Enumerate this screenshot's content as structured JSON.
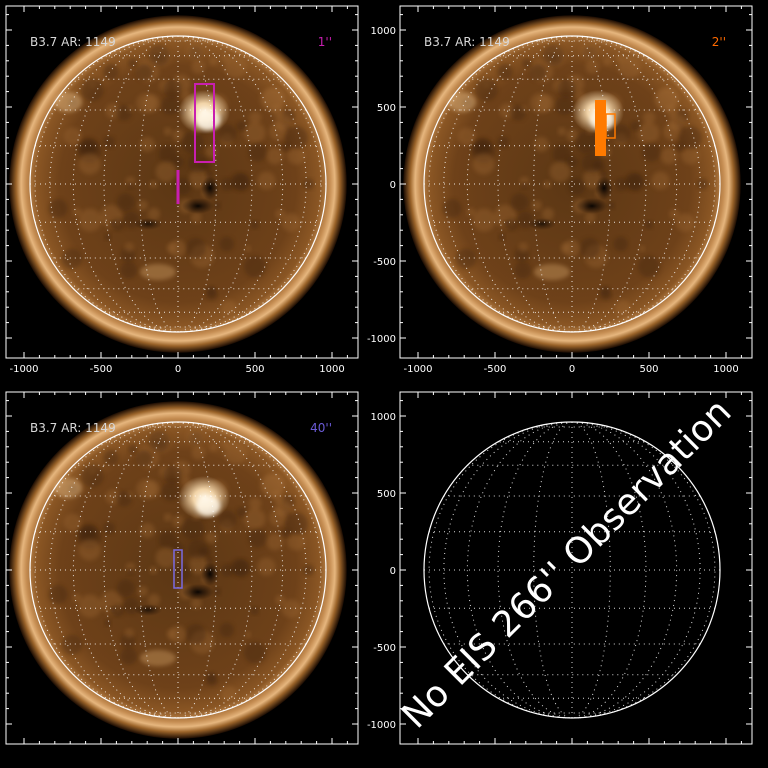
{
  "panels": [
    {
      "id": "top-left",
      "info_label": "B3.7  AR: 1149",
      "resolution_label": "1''",
      "resolution_color": "#c81fb0",
      "overlay_color": "#c81fb0",
      "has_image": true
    },
    {
      "id": "top-right",
      "info_label": "B3.7  AR: 1149",
      "resolution_label": "2''",
      "resolution_color": "#ff6a00",
      "overlay_color": "#ff7a00",
      "has_image": true
    },
    {
      "id": "bottom-left",
      "info_label": "B3.7  AR: 1149",
      "resolution_label": "40''",
      "resolution_color": "#6b5bd6",
      "overlay_color": "#7a6ae0",
      "has_image": true
    },
    {
      "id": "bottom-right",
      "has_image": false,
      "message": "No EIS 266'' Observation"
    }
  ],
  "axis": {
    "x_ticks": [
      "-1000",
      "-500",
      "0",
      "500",
      "1000"
    ],
    "y_ticks": [
      "1000",
      "500",
      "0",
      "-500",
      "-1000"
    ]
  },
  "colors": {
    "background": "#000000",
    "sun_core": "#6a3f16",
    "sun_limb": "#d8a468",
    "grid": "#ffffff"
  }
}
